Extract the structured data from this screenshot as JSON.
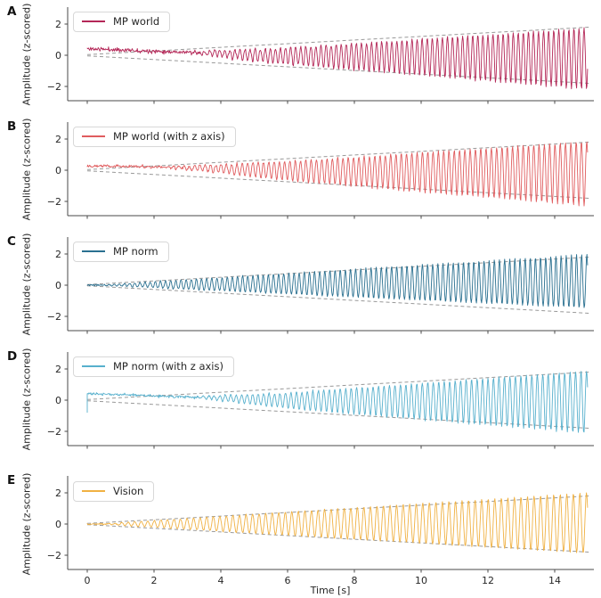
{
  "figure": {
    "description": "Five stacked line plots (A-E) of oscillatory signals with linearly growing amplitude envelopes shown as dashed lines"
  },
  "chart_data": {
    "type": "line",
    "axis": {
      "xlabel": "Time [s]",
      "x_ticks": [
        0,
        2,
        4,
        6,
        8,
        10,
        12,
        14
      ],
      "x_tick_labels": [
        "0",
        "2",
        "4",
        "6",
        "8",
        "10",
        "12",
        "14"
      ],
      "xlim": [
        -0.6,
        15.2
      ],
      "y_ticks": [
        2,
        0,
        -2
      ],
      "y_tick_labels": [
        "2",
        "0",
        "−2"
      ],
      "ylim": [
        -3,
        3
      ],
      "grid": false,
      "legend_position": "upper left",
      "envelope_line": {
        "color": "#999999",
        "style": "dashed",
        "base": 0.04,
        "slope_per_s": 0.117,
        "t_end": 15.05
      }
    },
    "panels": [
      {
        "letter": "A",
        "legend_label": "MP world",
        "ylabel": "Amplitude (z-scored)",
        "color": "#b42757",
        "show_x_tick_labels": false,
        "synth": {
          "seed": 11,
          "freq_hz": 6.6,
          "sample_rate_hz": 58,
          "phase": 0.3,
          "env_onset_s": 2.8,
          "env_slope": 0.146,
          "pos_scale": 1.0,
          "neg_scale": 1.25,
          "offset0": 0.42,
          "offset_decay_s": 5.5,
          "noise": 0.1,
          "start_dip": null,
          "t_end": 15.0
        }
      },
      {
        "letter": "B",
        "legend_label": "MP world (with z axis)",
        "ylabel": "Amplitude (z-scored)",
        "color": "#e05c5e",
        "show_x_tick_labels": false,
        "synth": {
          "seed": 22,
          "freq_hz": 6.3,
          "sample_rate_hz": 58,
          "phase": 0.0,
          "env_onset_s": 2.2,
          "env_slope": 0.139,
          "pos_scale": 1.05,
          "neg_scale": 1.3,
          "offset0": 0.3,
          "offset_decay_s": 6.5,
          "noise": 0.075,
          "start_dip": null,
          "t_end": 15.0
        }
      },
      {
        "letter": "C",
        "legend_label": "MP norm",
        "ylabel": "Amplitude (z-scored)",
        "color": "#2a7090",
        "show_x_tick_labels": false,
        "synth": {
          "seed": 33,
          "freq_hz": 6.5,
          "sample_rate_hz": 58,
          "phase": 0.0,
          "env_onset_s": 0.35,
          "env_slope": 0.119,
          "pos_scale": 1.15,
          "neg_scale": 0.85,
          "offset0": 0.0,
          "offset_decay_s": 1,
          "noise": 0.035,
          "start_dip": null,
          "t_end": 15.0
        }
      },
      {
        "letter": "D",
        "legend_label": "MP norm (with z axis)",
        "ylabel": "Amplitude (z-scored)",
        "color": "#57b0cd",
        "show_x_tick_labels": false,
        "synth": {
          "seed": 44,
          "freq_hz": 6.1,
          "sample_rate_hz": 58,
          "phase": 0.2,
          "env_onset_s": 3.0,
          "env_slope": 0.15,
          "pos_scale": 1.05,
          "neg_scale": 1.2,
          "offset0": 0.42,
          "offset_decay_s": 6.0,
          "noise": 0.07,
          "start_dip": -0.78,
          "t_end": 15.0
        }
      },
      {
        "letter": "E",
        "legend_label": "Vision",
        "ylabel": "Amplitude (z-scored)",
        "color": "#f0b142",
        "show_x_tick_labels": true,
        "synth": {
          "seed": 55,
          "freq_hz": 5.1,
          "sample_rate_hz": 58,
          "phase": 0.0,
          "env_onset_s": 0.35,
          "env_slope": 0.123,
          "pos_scale": 1.12,
          "neg_scale": 1.05,
          "offset0": 0.0,
          "offset_decay_s": 1,
          "noise": 0.03,
          "start_dip": null,
          "t_end": 15.0
        }
      }
    ],
    "style_colors": {
      "spine": "#4a4a4a",
      "tick_label": "#262626",
      "envelope_dash": "#999999"
    }
  }
}
